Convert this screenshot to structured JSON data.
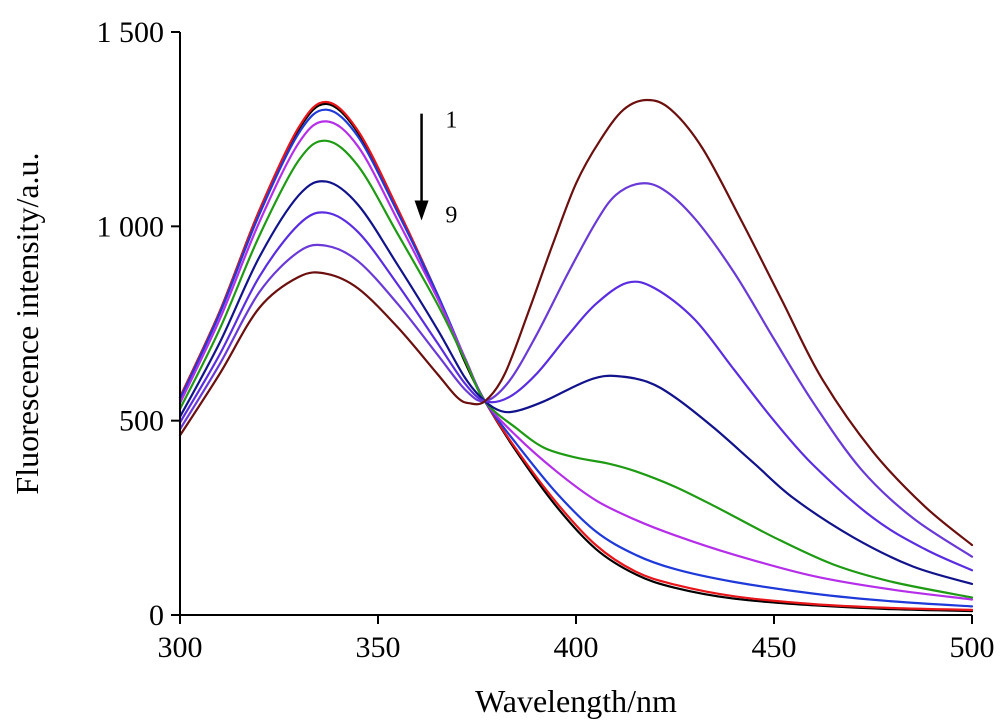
{
  "chart_data": {
    "type": "line",
    "title": "",
    "xlabel": "Wavelength/nm",
    "ylabel": "Fluorescence intensity/a.u.",
    "xlim": [
      300,
      500
    ],
    "ylim": [
      0,
      1500
    ],
    "xticks": [
      300,
      350,
      400,
      450,
      500
    ],
    "yticks": [
      0,
      500,
      1000,
      1500
    ],
    "xtick_labels": [
      "300",
      "350",
      "400",
      "450",
      "500"
    ],
    "ytick_labels": [
      "0",
      "500",
      "1 000",
      "1 500"
    ],
    "grid": false,
    "legend": null,
    "annotations": {
      "arrow": {
        "from_label": "1",
        "to_label": "9",
        "x": 361,
        "y_start": 1290,
        "y_end": 1020,
        "label_x": 367
      }
    },
    "series": [
      {
        "color": "#000000",
        "points": [
          [
            300,
            560
          ],
          [
            310,
            780
          ],
          [
            320,
            1040
          ],
          [
            330,
            1250
          ],
          [
            337,
            1315
          ],
          [
            345,
            1240
          ],
          [
            355,
            1040
          ],
          [
            365,
            820
          ],
          [
            372,
            650
          ],
          [
            377,
            550
          ],
          [
            385,
            420
          ],
          [
            395,
            280
          ],
          [
            405,
            170
          ],
          [
            415,
            105
          ],
          [
            425,
            70
          ],
          [
            440,
            42
          ],
          [
            460,
            25
          ],
          [
            480,
            15
          ],
          [
            500,
            10
          ]
        ]
      },
      {
        "color": "#e8151b",
        "points": [
          [
            300,
            560
          ],
          [
            310,
            780
          ],
          [
            320,
            1040
          ],
          [
            330,
            1255
          ],
          [
            337,
            1320
          ],
          [
            345,
            1245
          ],
          [
            355,
            1045
          ],
          [
            365,
            825
          ],
          [
            372,
            655
          ],
          [
            377,
            550
          ],
          [
            385,
            425
          ],
          [
            395,
            290
          ],
          [
            405,
            180
          ],
          [
            415,
            112
          ],
          [
            425,
            78
          ],
          [
            440,
            48
          ],
          [
            460,
            28
          ],
          [
            480,
            18
          ],
          [
            500,
            13
          ]
        ]
      },
      {
        "color": "#1f3ad8",
        "points": [
          [
            300,
            555
          ],
          [
            310,
            775
          ],
          [
            320,
            1030
          ],
          [
            330,
            1240
          ],
          [
            337,
            1300
          ],
          [
            345,
            1230
          ],
          [
            355,
            1035
          ],
          [
            365,
            825
          ],
          [
            372,
            660
          ],
          [
            377,
            550
          ],
          [
            385,
            440
          ],
          [
            395,
            315
          ],
          [
            405,
            215
          ],
          [
            415,
            155
          ],
          [
            425,
            118
          ],
          [
            440,
            85
          ],
          [
            460,
            55
          ],
          [
            480,
            35
          ],
          [
            500,
            22
          ]
        ]
      },
      {
        "color": "#b52fe8",
        "points": [
          [
            300,
            545
          ],
          [
            310,
            760
          ],
          [
            320,
            1010
          ],
          [
            330,
            1215
          ],
          [
            337,
            1270
          ],
          [
            345,
            1205
          ],
          [
            355,
            1015
          ],
          [
            365,
            815
          ],
          [
            372,
            660
          ],
          [
            377,
            550
          ],
          [
            385,
            460
          ],
          [
            395,
            370
          ],
          [
            405,
            295
          ],
          [
            415,
            245
          ],
          [
            425,
            205
          ],
          [
            440,
            155
          ],
          [
            460,
            100
          ],
          [
            480,
            65
          ],
          [
            500,
            40
          ]
        ]
      },
      {
        "color": "#1f9a14",
        "points": [
          [
            300,
            530
          ],
          [
            310,
            735
          ],
          [
            320,
            975
          ],
          [
            330,
            1170
          ],
          [
            337,
            1220
          ],
          [
            345,
            1155
          ],
          [
            355,
            980
          ],
          [
            365,
            800
          ],
          [
            372,
            655
          ],
          [
            377,
            550
          ],
          [
            385,
            480
          ],
          [
            392,
            430
          ],
          [
            400,
            405
          ],
          [
            408,
            390
          ],
          [
            415,
            370
          ],
          [
            425,
            330
          ],
          [
            435,
            280
          ],
          [
            450,
            200
          ],
          [
            465,
            130
          ],
          [
            480,
            85
          ],
          [
            500,
            45
          ]
        ]
      },
      {
        "color": "#12138a",
        "points": [
          [
            300,
            510
          ],
          [
            310,
            700
          ],
          [
            320,
            920
          ],
          [
            330,
            1080
          ],
          [
            337,
            1115
          ],
          [
            345,
            1055
          ],
          [
            355,
            900
          ],
          [
            365,
            735
          ],
          [
            372,
            610
          ],
          [
            377,
            550
          ],
          [
            381,
            525
          ],
          [
            385,
            525
          ],
          [
            392,
            550
          ],
          [
            400,
            590
          ],
          [
            405,
            610
          ],
          [
            410,
            615
          ],
          [
            418,
            600
          ],
          [
            425,
            560
          ],
          [
            435,
            480
          ],
          [
            445,
            390
          ],
          [
            455,
            300
          ],
          [
            470,
            200
          ],
          [
            485,
            125
          ],
          [
            500,
            80
          ]
        ]
      },
      {
        "color": "#5a2ee0",
        "points": [
          [
            300,
            495
          ],
          [
            310,
            670
          ],
          [
            320,
            870
          ],
          [
            330,
            1005
          ],
          [
            337,
            1035
          ],
          [
            345,
            985
          ],
          [
            355,
            850
          ],
          [
            365,
            700
          ],
          [
            372,
            595
          ],
          [
            377,
            550
          ],
          [
            383,
            560
          ],
          [
            390,
            620
          ],
          [
            398,
            720
          ],
          [
            405,
            800
          ],
          [
            413,
            855
          ],
          [
            420,
            840
          ],
          [
            430,
            760
          ],
          [
            440,
            630
          ],
          [
            450,
            500
          ],
          [
            460,
            385
          ],
          [
            475,
            250
          ],
          [
            488,
            170
          ],
          [
            500,
            115
          ]
        ]
      },
      {
        "color": "#6a3ad6",
        "points": [
          [
            300,
            478
          ],
          [
            310,
            645
          ],
          [
            320,
            830
          ],
          [
            330,
            935
          ],
          [
            337,
            950
          ],
          [
            345,
            910
          ],
          [
            355,
            800
          ],
          [
            365,
            670
          ],
          [
            372,
            580
          ],
          [
            377,
            550
          ],
          [
            383,
            600
          ],
          [
            390,
            720
          ],
          [
            398,
            880
          ],
          [
            405,
            1010
          ],
          [
            410,
            1080
          ],
          [
            416,
            1110
          ],
          [
            422,
            1095
          ],
          [
            430,
            1020
          ],
          [
            440,
            880
          ],
          [
            450,
            710
          ],
          [
            460,
            545
          ],
          [
            472,
            375
          ],
          [
            485,
            250
          ],
          [
            500,
            150
          ]
        ]
      },
      {
        "color": "#6b0f0f",
        "points": [
          [
            300,
            462
          ],
          [
            310,
            620
          ],
          [
            320,
            790
          ],
          [
            330,
            870
          ],
          [
            337,
            878
          ],
          [
            345,
            840
          ],
          [
            355,
            740
          ],
          [
            365,
            620
          ],
          [
            370,
            560
          ],
          [
            373,
            545
          ],
          [
            377,
            550
          ],
          [
            382,
            620
          ],
          [
            388,
            780
          ],
          [
            394,
            950
          ],
          [
            400,
            1110
          ],
          [
            406,
            1220
          ],
          [
            412,
            1300
          ],
          [
            418,
            1325
          ],
          [
            424,
            1300
          ],
          [
            432,
            1200
          ],
          [
            442,
            1010
          ],
          [
            452,
            810
          ],
          [
            462,
            610
          ],
          [
            475,
            420
          ],
          [
            488,
            280
          ],
          [
            500,
            180
          ]
        ]
      }
    ]
  }
}
